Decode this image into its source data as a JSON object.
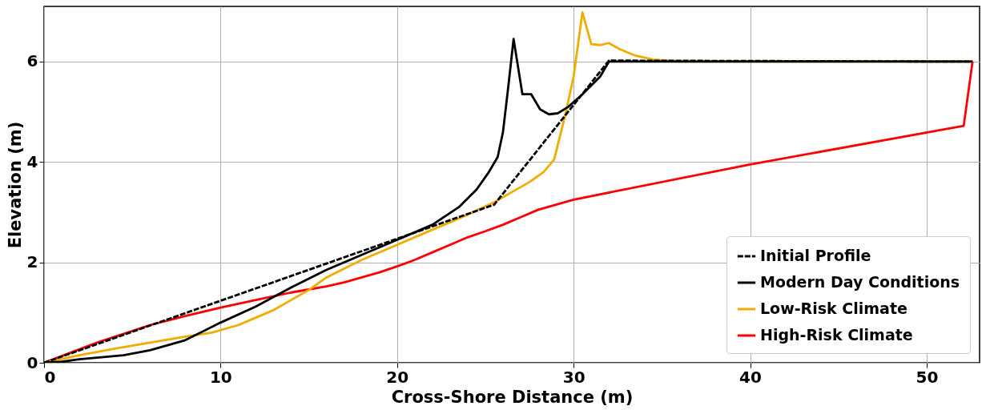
{
  "chart_data": {
    "type": "line",
    "xlabel": "Cross-Shore Distance (m)",
    "ylabel": "Elevation (m)",
    "xlim": [
      0,
      53
    ],
    "ylim": [
      0,
      7.1
    ],
    "xticks": [
      0,
      10,
      20,
      30,
      40,
      50
    ],
    "yticks": [
      0,
      2,
      4,
      6
    ],
    "grid": true,
    "legend": "bottom right",
    "marker": "none",
    "series": [
      {
        "name": "Initial Profile",
        "color": "#000000",
        "line_style": "dashed",
        "x": [
          0,
          25.5,
          32,
          52.6
        ],
        "values": [
          0,
          3.15,
          6.02,
          6.0
        ]
      },
      {
        "name": "Modern Day Conditions",
        "color": "#000000",
        "line_style": "solid",
        "x": [
          0,
          1,
          2,
          4.5,
          6,
          8,
          10,
          12,
          14,
          16,
          18,
          20,
          22,
          23.5,
          24.5,
          25.2,
          25.7,
          26,
          26.3,
          26.6,
          27.1,
          27.6,
          28.1,
          28.6,
          29.1,
          29.7,
          30.5,
          31.5,
          32,
          34,
          52.6
        ],
        "values": [
          0,
          0.02,
          0.07,
          0.15,
          0.25,
          0.45,
          0.8,
          1.12,
          1.5,
          1.85,
          2.15,
          2.45,
          2.75,
          3.1,
          3.45,
          3.8,
          4.1,
          4.6,
          5.5,
          6.45,
          5.35,
          5.35,
          5.05,
          4.95,
          4.97,
          5.1,
          5.35,
          5.7,
          6.0,
          6.0,
          6.0
        ]
      },
      {
        "name": "Low-Risk Climate",
        "color": "#f0ad00",
        "line_style": "solid",
        "x": [
          0,
          2,
          4,
          6,
          8,
          9.5,
          11,
          12,
          13,
          14,
          15,
          16,
          18,
          20,
          22,
          24,
          25.5,
          26.5,
          27.5,
          28.3,
          28.9,
          29.5,
          30,
          30.5,
          31.0,
          31.5,
          32.0,
          32.6,
          33.5,
          34.5,
          36,
          52.6
        ],
        "values": [
          0,
          0.15,
          0.28,
          0.4,
          0.52,
          0.6,
          0.75,
          0.9,
          1.05,
          1.25,
          1.45,
          1.7,
          2.05,
          2.35,
          2.65,
          2.95,
          3.2,
          3.4,
          3.6,
          3.8,
          4.05,
          4.9,
          5.7,
          6.98,
          6.35,
          6.33,
          6.37,
          6.25,
          6.12,
          6.04,
          6.0,
          6.0
        ]
      },
      {
        "name": "High-Risk Climate",
        "color": "#ff0000",
        "line_style": "solid",
        "x": [
          0,
          3,
          6,
          8,
          10,
          12,
          14,
          16,
          17,
          18,
          19,
          20,
          21,
          22,
          23,
          24,
          25,
          26,
          27,
          28,
          29,
          30,
          40,
          52.1,
          52.6
        ],
        "values": [
          0,
          0.4,
          0.75,
          0.93,
          1.1,
          1.25,
          1.4,
          1.52,
          1.6,
          1.7,
          1.8,
          1.92,
          2.05,
          2.2,
          2.35,
          2.5,
          2.62,
          2.75,
          2.9,
          3.05,
          3.15,
          3.25,
          3.95,
          4.72,
          6.0
        ]
      }
    ]
  }
}
